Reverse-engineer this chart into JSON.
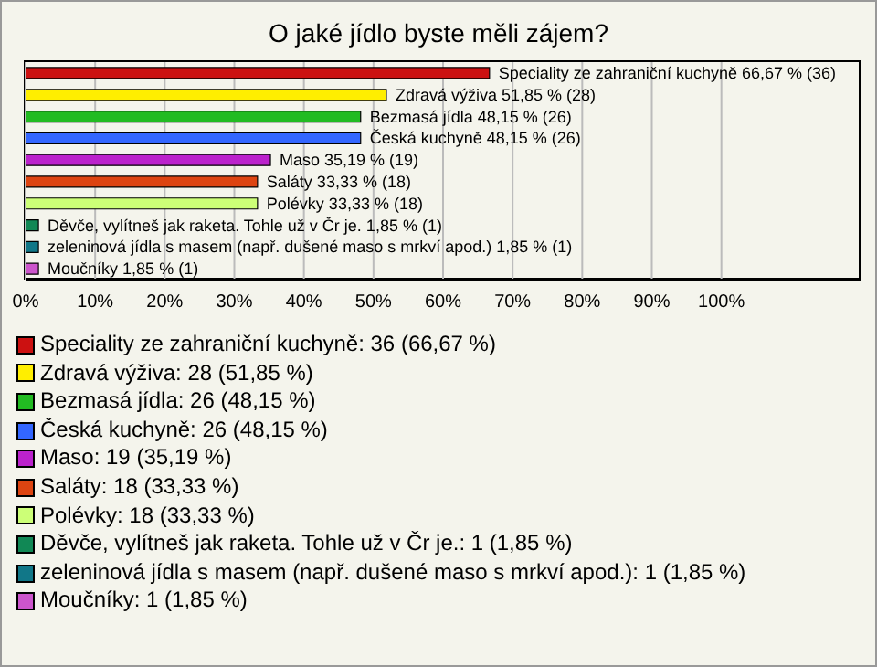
{
  "chart_data": {
    "type": "bar",
    "orientation": "horizontal",
    "title": "O jaké jídlo byste měli zájem?",
    "categories": [
      null,
      null,
      null,
      null,
      null,
      null,
      null,
      null,
      null,
      null
    ],
    "values": [
      66.67,
      51.85,
      48.15,
      48.15,
      35.19,
      33.33,
      33.33,
      1.85,
      1.85,
      1.85
    ],
    "colors": [
      "#cc1111",
      "#ffee00",
      "#22bb22",
      "#3366ff",
      "#bb22cc",
      "#dd4411",
      "#ccff77",
      "#118855",
      "#117788",
      "#cc55cc"
    ],
    "value_labels": [
      "Speciality ze zahraniční kuchyně 66,67 % (36)",
      "Zdravá výživa 51,85 % (28)",
      "Bezmasá jídla 48,15 % (26)",
      "Česká kuchyně 48,15 % (26)",
      "Maso 35,19 % (19)",
      "Saláty 33,33 % (18)",
      "Polévky 33,33 % (18)",
      "Děvče, vylítneš jak raketa. Tohle už v Čr je. 1,85 % (1)",
      "zeleninová jídla s masem (např. dušené maso s mrkví apod.) 1,85 % (1)",
      "Moučníky 1,85 % (1)"
    ],
    "xlim": [
      0,
      120
    ],
    "xticks": [
      {
        "value": 0,
        "label": "0%"
      },
      {
        "value": 10,
        "label": "10%"
      },
      {
        "value": 20,
        "label": "20%"
      },
      {
        "value": 30,
        "label": "30%"
      },
      {
        "value": 40,
        "label": "40%"
      },
      {
        "value": 50,
        "label": "50%"
      },
      {
        "value": 60,
        "label": "60%"
      },
      {
        "value": 70,
        "label": "70%"
      },
      {
        "value": 80,
        "label": "80%"
      },
      {
        "value": 90,
        "label": "90%"
      },
      {
        "value": 100,
        "label": "100%"
      }
    ],
    "grid": "x",
    "tick_labels": "x",
    "annotations": [
      "Speciality ze zahraniční kuchyně: 36 (66,67 %)",
      "Zdravá výživa: 28 (51,85 %)",
      "Bezmasá jídla: 26 (48,15 %)",
      "Česká kuchyně: 26 (48,15 %)",
      "Maso: 19 (35,19 %)",
      "Saláty: 18 (33,33 %)",
      "Polévky: 18 (33,33 %)",
      "Děvče, vylítneš jak raketa. Tohle už v Čr je.: 1 (1,85 %)",
      "zeleninová jídla s masem (např. dušené maso s mrkví apod.): 1 (1,85 %)",
      "Moučníky: 1 (1,85 %)"
    ]
  }
}
